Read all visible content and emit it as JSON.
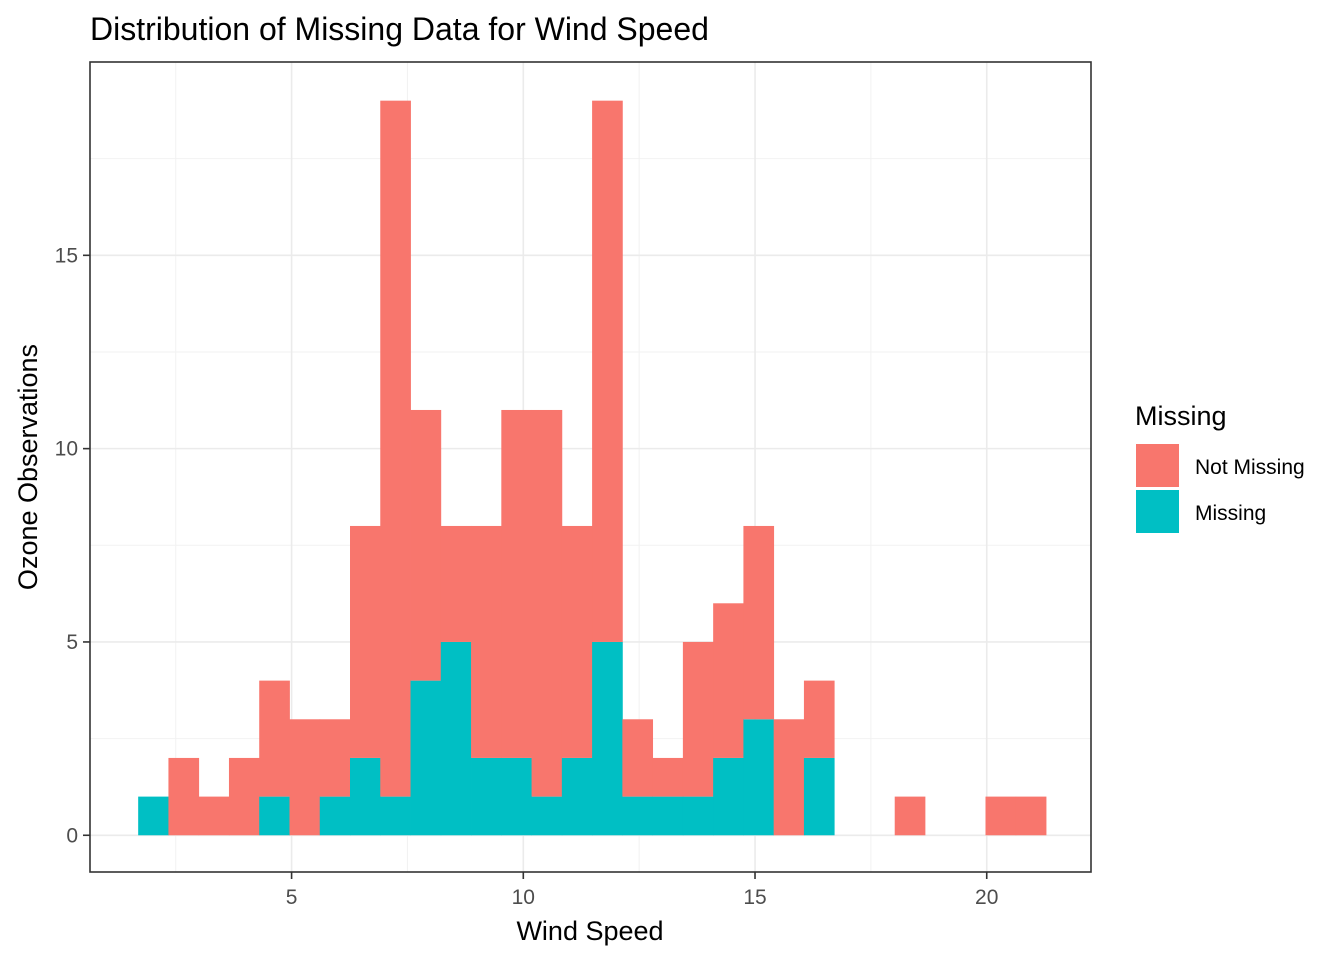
{
  "chart_data": {
    "type": "bar",
    "subtype": "stacked-histogram",
    "title": "Distribution of Missing Data for Wind Speed",
    "xlabel": "Wind Speed",
    "ylabel": "Ozone Observations",
    "xlim": [
      0.65,
      22.25
    ],
    "ylim": [
      -0.95,
      20
    ],
    "x_ticks": [
      5,
      10,
      15,
      20
    ],
    "y_ticks": [
      0,
      5,
      10,
      15
    ],
    "grid": true,
    "legend": {
      "title": "Missing",
      "position": "right"
    },
    "bin_width": 0.653,
    "bin_centers": [
      2.016,
      2.669,
      3.322,
      3.975,
      4.628,
      5.281,
      5.934,
      6.587,
      7.24,
      7.893,
      8.546,
      9.199,
      9.852,
      10.505,
      11.158,
      11.811,
      12.464,
      13.117,
      13.77,
      14.423,
      15.076,
      15.729,
      16.382,
      17.035,
      17.688,
      18.341,
      18.994,
      19.647,
      20.3,
      20.953
    ],
    "series": [
      {
        "name": "Missing",
        "color": "#00BFC4",
        "values": [
          1,
          0,
          0,
          0,
          1,
          0,
          1,
          2,
          1,
          4,
          5,
          2,
          2,
          1,
          2,
          5,
          1,
          1,
          1,
          2,
          3,
          0,
          2,
          0,
          0,
          0,
          0,
          0,
          0,
          0
        ]
      },
      {
        "name": "Not Missing",
        "color": "#F8766D",
        "values": [
          0,
          2,
          1,
          2,
          3,
          3,
          2,
          6,
          18,
          7,
          3,
          6,
          9,
          10,
          6,
          14,
          2,
          1,
          4,
          4,
          5,
          3,
          2,
          0,
          0,
          1,
          0,
          0,
          1,
          1
        ]
      }
    ],
    "legend_order": [
      "Not Missing",
      "Missing"
    ]
  }
}
